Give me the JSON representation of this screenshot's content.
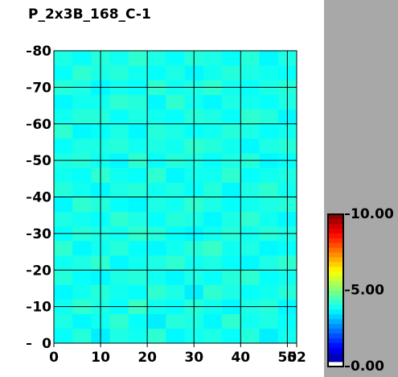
{
  "chart_data": {
    "type": "heatmap",
    "title": "P_2x3B_168_C-1",
    "xlim": [
      0,
      52
    ],
    "ylim": [
      0,
      80
    ],
    "xticks": [
      0,
      10,
      20,
      30,
      40,
      50,
      52
    ],
    "yticks": [
      0,
      10,
      20,
      30,
      40,
      50,
      60,
      70,
      80
    ],
    "grid": true,
    "colormap": "jet",
    "colorbar": {
      "lim": [
        0,
        10
      ],
      "ticks": [
        {
          "value": 0,
          "label": "0.00"
        },
        {
          "value": 5,
          "label": "5.00"
        },
        {
          "value": 10,
          "label": "10.00"
        }
      ]
    },
    "z": [
      [
        3.8,
        4.1,
        3.6,
        4.0,
        3.9,
        4.2,
        3.7,
        3.9,
        4.0,
        3.8,
        4.1,
        3.6,
        3.9
      ],
      [
        4.0,
        3.7,
        3.9,
        4.2,
        3.8,
        3.6,
        4.1,
        4.0,
        3.7,
        4.2,
        3.9,
        4.0,
        3.8
      ],
      [
        3.9,
        4.2,
        4.0,
        3.8,
        4.3,
        3.9,
        3.8,
        4.1,
        3.9,
        3.7,
        4.0,
        4.1,
        3.7
      ],
      [
        3.7,
        3.9,
        4.1,
        3.9,
        3.8,
        4.2,
        4.0,
        3.6,
        4.2,
        4.0,
        3.8,
        3.9,
        4.1
      ],
      [
        4.1,
        3.8,
        3.7,
        4.0,
        4.1,
        3.9,
        3.7,
        4.0,
        3.8,
        4.1,
        4.2,
        3.8,
        3.9
      ],
      [
        3.9,
        4.0,
        4.2,
        3.7,
        3.9,
        4.0,
        4.2,
        3.9,
        4.0,
        3.8,
        3.7,
        4.0,
        4.2
      ],
      [
        4.2,
        3.7,
        3.9,
        4.1,
        3.8,
        3.7,
        3.9,
        4.1,
        4.3,
        3.9,
        4.0,
        3.7,
        3.8
      ],
      [
        3.8,
        4.1,
        4.0,
        3.9,
        4.2,
        4.1,
        3.8,
        3.7,
        3.9,
        4.1,
        3.9,
        4.1,
        4.0
      ],
      [
        4.0,
        3.9,
        3.8,
        4.2,
        4.0,
        3.8,
        4.1,
        4.0,
        3.7,
        4.0,
        4.2,
        3.9,
        3.7
      ],
      [
        3.7,
        4.2,
        4.1,
        3.8,
        3.7,
        4.0,
        3.9,
        4.2,
        4.0,
        3.8,
        3.9,
        4.0,
        4.1
      ],
      [
        4.1,
        3.9,
        3.7,
        4.0,
        4.1,
        3.9,
        4.0,
        3.8,
        4.1,
        3.7,
        4.0,
        4.2,
        3.9
      ],
      [
        3.9,
        3.8,
        4.2,
        3.9,
        3.8,
        4.2,
        3.7,
        3.9,
        3.9,
        4.2,
        3.8,
        3.9,
        4.0
      ],
      [
        4.0,
        4.1,
        3.9,
        3.7,
        4.2,
        3.8,
        4.1,
        4.0,
        3.8,
        4.0,
        4.1,
        3.7,
        3.8
      ],
      [
        3.8,
        4.0,
        4.0,
        4.1,
        3.9,
        4.0,
        3.9,
        4.2,
        4.1,
        3.9,
        3.7,
        4.0,
        4.1
      ],
      [
        4.2,
        3.7,
        3.8,
        4.0,
        3.7,
        4.1,
        4.0,
        3.8,
        3.9,
        4.1,
        4.0,
        3.8,
        3.9
      ],
      [
        3.9,
        4.1,
        4.1,
        3.8,
        4.0,
        3.9,
        3.8,
        4.1,
        4.0,
        3.8,
        4.2,
        4.1,
        3.7
      ],
      [
        3.7,
        3.9,
        3.9,
        4.2,
        4.1,
        3.7,
        4.2,
        3.9,
        3.7,
        4.0,
        3.9,
        3.8,
        4.0
      ],
      [
        4.1,
        4.0,
        3.7,
        3.9,
        3.8,
        4.2,
        3.9,
        4.0,
        4.2,
        3.9,
        3.8,
        4.0,
        4.1
      ],
      [
        3.8,
        4.2,
        4.0,
        4.1,
        3.9,
        3.8,
        4.0,
        3.7,
        3.9,
        4.1,
        4.0,
        3.9,
        3.8
      ],
      [
        4.0,
        3.8,
        4.1,
        3.9,
        4.2,
        4.0,
        3.8,
        4.1,
        4.0,
        3.8,
        4.1,
        3.7,
        4.0
      ]
    ]
  }
}
